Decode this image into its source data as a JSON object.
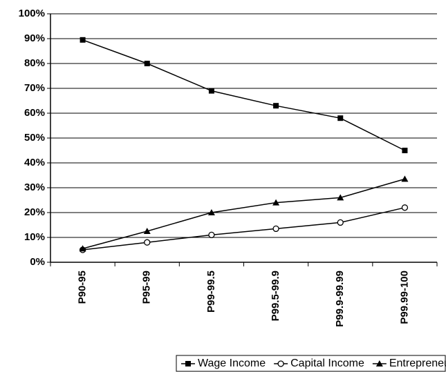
{
  "chart_data": {
    "type": "line",
    "categories": [
      "P90-95",
      "P95-99",
      "P99-99.5",
      "P99.5-99.9",
      "P99.9-99.99",
      "P99.99-100"
    ],
    "series": [
      {
        "name": "Wage Income",
        "color": "#000000",
        "marker": "square",
        "values": [
          89.5,
          80,
          69,
          63,
          58,
          45
        ]
      },
      {
        "name": "Capital Income",
        "color": "#000000",
        "marker": "circle",
        "values": [
          5,
          8,
          11,
          13.5,
          16,
          22
        ]
      },
      {
        "name": "Entrepreneurial Income",
        "color": "#000000",
        "marker": "triangle",
        "values": [
          5.5,
          12.5,
          20,
          24,
          26,
          33.5
        ]
      }
    ],
    "ylim": [
      0,
      100
    ],
    "yticks": [
      {
        "value": 0,
        "label": "0%"
      },
      {
        "value": 10,
        "label": "10%"
      },
      {
        "value": 20,
        "label": "20%"
      },
      {
        "value": 30,
        "label": "30%"
      },
      {
        "value": 40,
        "label": "40%"
      },
      {
        "value": 50,
        "label": "50%"
      },
      {
        "value": 60,
        "label": "60%"
      },
      {
        "value": 70,
        "label": "70%"
      },
      {
        "value": 80,
        "label": "80%"
      },
      {
        "value": 90,
        "label": "90%"
      },
      {
        "value": 100,
        "label": "100%"
      }
    ],
    "grid": true,
    "legend": "bottom"
  }
}
